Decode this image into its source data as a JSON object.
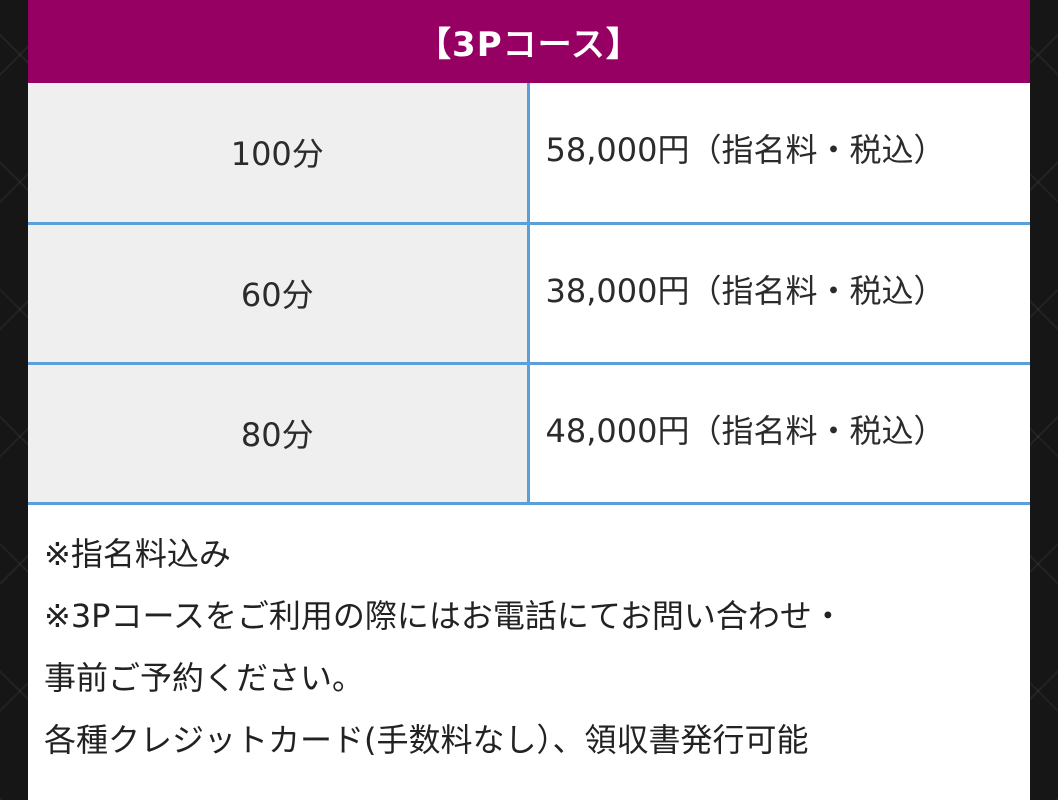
{
  "course": {
    "title": "【3Pコース】",
    "accent_color": "#960062",
    "rows": [
      {
        "duration": "100分",
        "price": "58,000円（指名料・税込）"
      },
      {
        "duration": "60分",
        "price": "38,000円（指名料・税込）"
      },
      {
        "duration": "80分",
        "price": "48,000円（指名料・税込）"
      }
    ],
    "notes": [
      "※指名料込み",
      "※3Pコースをご利用の際にはお電話にてお問い合わせ・",
      "事前ご予約ください。",
      "各種クレジットカード(手数料なし）、領収書発行可能"
    ]
  }
}
